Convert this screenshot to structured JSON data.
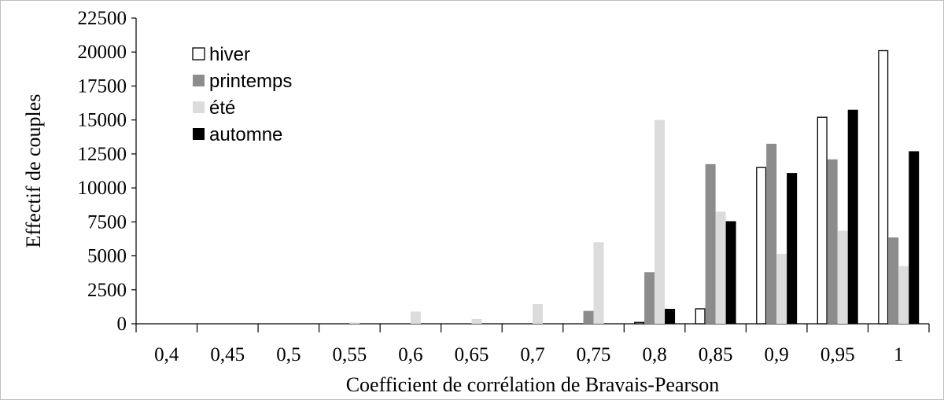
{
  "chart_data": {
    "type": "bar",
    "title": "",
    "xlabel": "Coefficient de corrélation de Bravais-Pearson",
    "ylabel": "Effectif de couples",
    "ylim": [
      0,
      22500
    ],
    "yticks": [
      "0",
      "2500",
      "5000",
      "7500",
      "10000",
      "12500",
      "15000",
      "17500",
      "20000",
      "22500"
    ],
    "categories": [
      "0,4",
      "0,45",
      "0,5",
      "0,55",
      "0,6",
      "0,65",
      "0,7",
      "0,75",
      "0,8",
      "0,85",
      "0,9",
      "0,95",
      "1"
    ],
    "grid": false,
    "legend_position": "top-left",
    "series": [
      {
        "name": "hiver",
        "color": "#ffffff",
        "stroke": "#000000",
        "values": [
          0,
          0,
          0,
          0,
          0,
          0,
          0,
          0,
          100,
          1100,
          11500,
          15200,
          20100
        ]
      },
      {
        "name": "printemps",
        "color": "#8c8c8c",
        "stroke": "none",
        "values": [
          0,
          0,
          0,
          0,
          0,
          0,
          0,
          950,
          3800,
          11750,
          13250,
          12100,
          6350
        ]
      },
      {
        "name": "été",
        "color": "#dcdcdc",
        "stroke": "none",
        "values": [
          0,
          0,
          0,
          100,
          900,
          350,
          1450,
          6000,
          15000,
          8250,
          5150,
          6850,
          4250
        ]
      },
      {
        "name": "automne",
        "color": "#000000",
        "stroke": "none",
        "values": [
          0,
          0,
          0,
          0,
          0,
          0,
          0,
          0,
          1100,
          7550,
          11100,
          15750,
          12700
        ]
      }
    ]
  }
}
